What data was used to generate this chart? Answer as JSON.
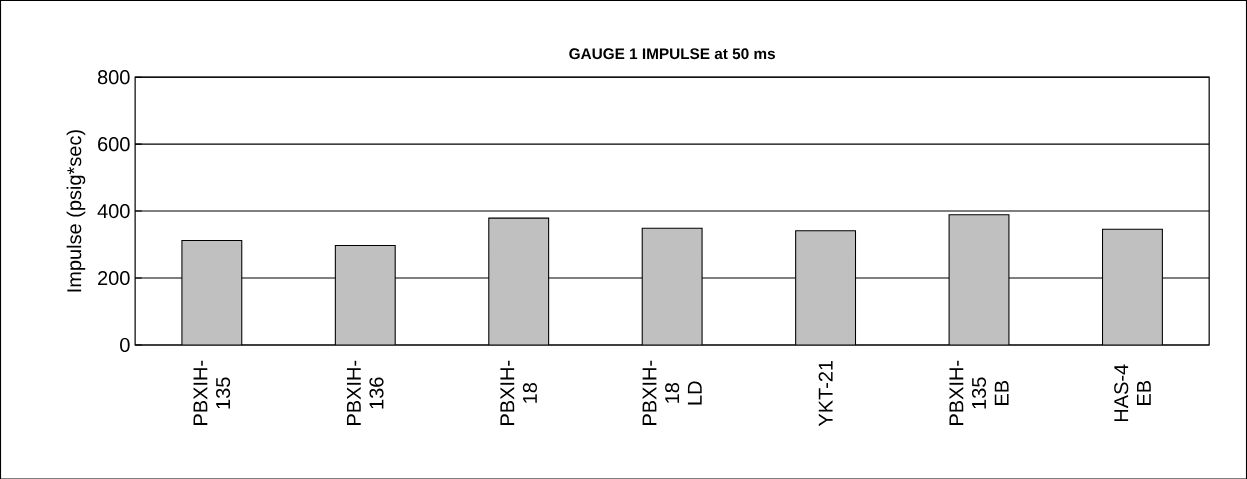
{
  "chart_data": {
    "type": "bar",
    "title": "GAUGE 1 IMPULSE at 50 ms",
    "ylabel": "Impulse (psig*sec)",
    "categories": [
      "PBXIH-135",
      "PBXIH-136",
      "PBXIH-18",
      "PBXIH-18 LD",
      "YKT-21",
      "PBXIH-135 EB",
      "HAS-4 EB"
    ],
    "values": [
      312,
      297,
      379,
      349,
      341,
      389,
      346
    ],
    "color": "#c0c0c0",
    "ylim": [
      0,
      800
    ],
    "yticks": [
      0,
      200,
      400,
      600,
      800
    ],
    "grid": "y"
  }
}
